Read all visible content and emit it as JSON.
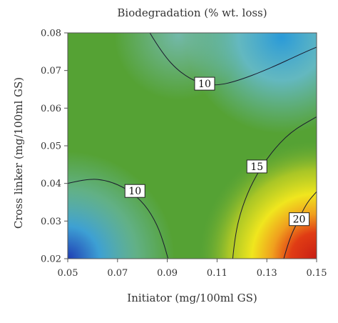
{
  "chart_data": {
    "type": "heatmap",
    "subtype": "contour",
    "title": "Biodegradation (% wt. loss)",
    "xlabel": "Initiator (mg/100ml GS)",
    "ylabel": "Cross linker (mg/100ml GS)",
    "xlim": [
      0.05,
      0.15
    ],
    "ylim": [
      0.02,
      0.08
    ],
    "x_ticks": [
      "0.05",
      "0.07",
      "0.09",
      "0.11",
      "0.13",
      "0.15"
    ],
    "y_ticks": [
      "0.02",
      "0.03",
      "0.04",
      "0.05",
      "0.06",
      "0.07",
      "0.08"
    ],
    "colormap": [
      "#1e3cb4",
      "#3ca0dc",
      "#6cbcc8",
      "#6aaa36",
      "#4a9e32",
      "#c8d21e",
      "#f0e61e",
      "#e87814",
      "#c81e14"
    ],
    "contours": [
      {
        "level": 10,
        "label": "10",
        "label_at": [
          0.105,
          0.0665
        ],
        "points": [
          [
            0.083,
            0.08
          ],
          [
            0.088,
            0.0745
          ],
          [
            0.095,
            0.0695
          ],
          [
            0.103,
            0.0665
          ],
          [
            0.11,
            0.066
          ],
          [
            0.118,
            0.0672
          ],
          [
            0.13,
            0.0702
          ],
          [
            0.145,
            0.0748
          ],
          [
            0.15,
            0.0762
          ]
        ]
      },
      {
        "level": 10,
        "label": "10",
        "label_at": [
          0.077,
          0.038
        ],
        "points": [
          [
            0.05,
            0.04
          ],
          [
            0.058,
            0.0413
          ],
          [
            0.066,
            0.0408
          ],
          [
            0.074,
            0.0385
          ],
          [
            0.081,
            0.0345
          ],
          [
            0.086,
            0.029
          ],
          [
            0.0888,
            0.0236
          ],
          [
            0.0903,
            0.02
          ]
        ]
      },
      {
        "level": 15,
        "label": "15",
        "label_at": [
          0.126,
          0.0445
        ],
        "points": [
          [
            0.1163,
            0.02
          ],
          [
            0.1172,
            0.0262
          ],
          [
            0.12,
            0.0337
          ],
          [
            0.1245,
            0.0408
          ],
          [
            0.1312,
            0.0478
          ],
          [
            0.1395,
            0.0537
          ],
          [
            0.15,
            0.0577
          ]
        ]
      },
      {
        "level": 20,
        "label": "20",
        "label_at": [
          0.143,
          0.0305
        ],
        "points": [
          [
            0.1368,
            0.02
          ],
          [
            0.139,
            0.0252
          ],
          [
            0.1425,
            0.03
          ],
          [
            0.146,
            0.0348
          ],
          [
            0.15,
            0.0378
          ]
        ]
      }
    ]
  }
}
